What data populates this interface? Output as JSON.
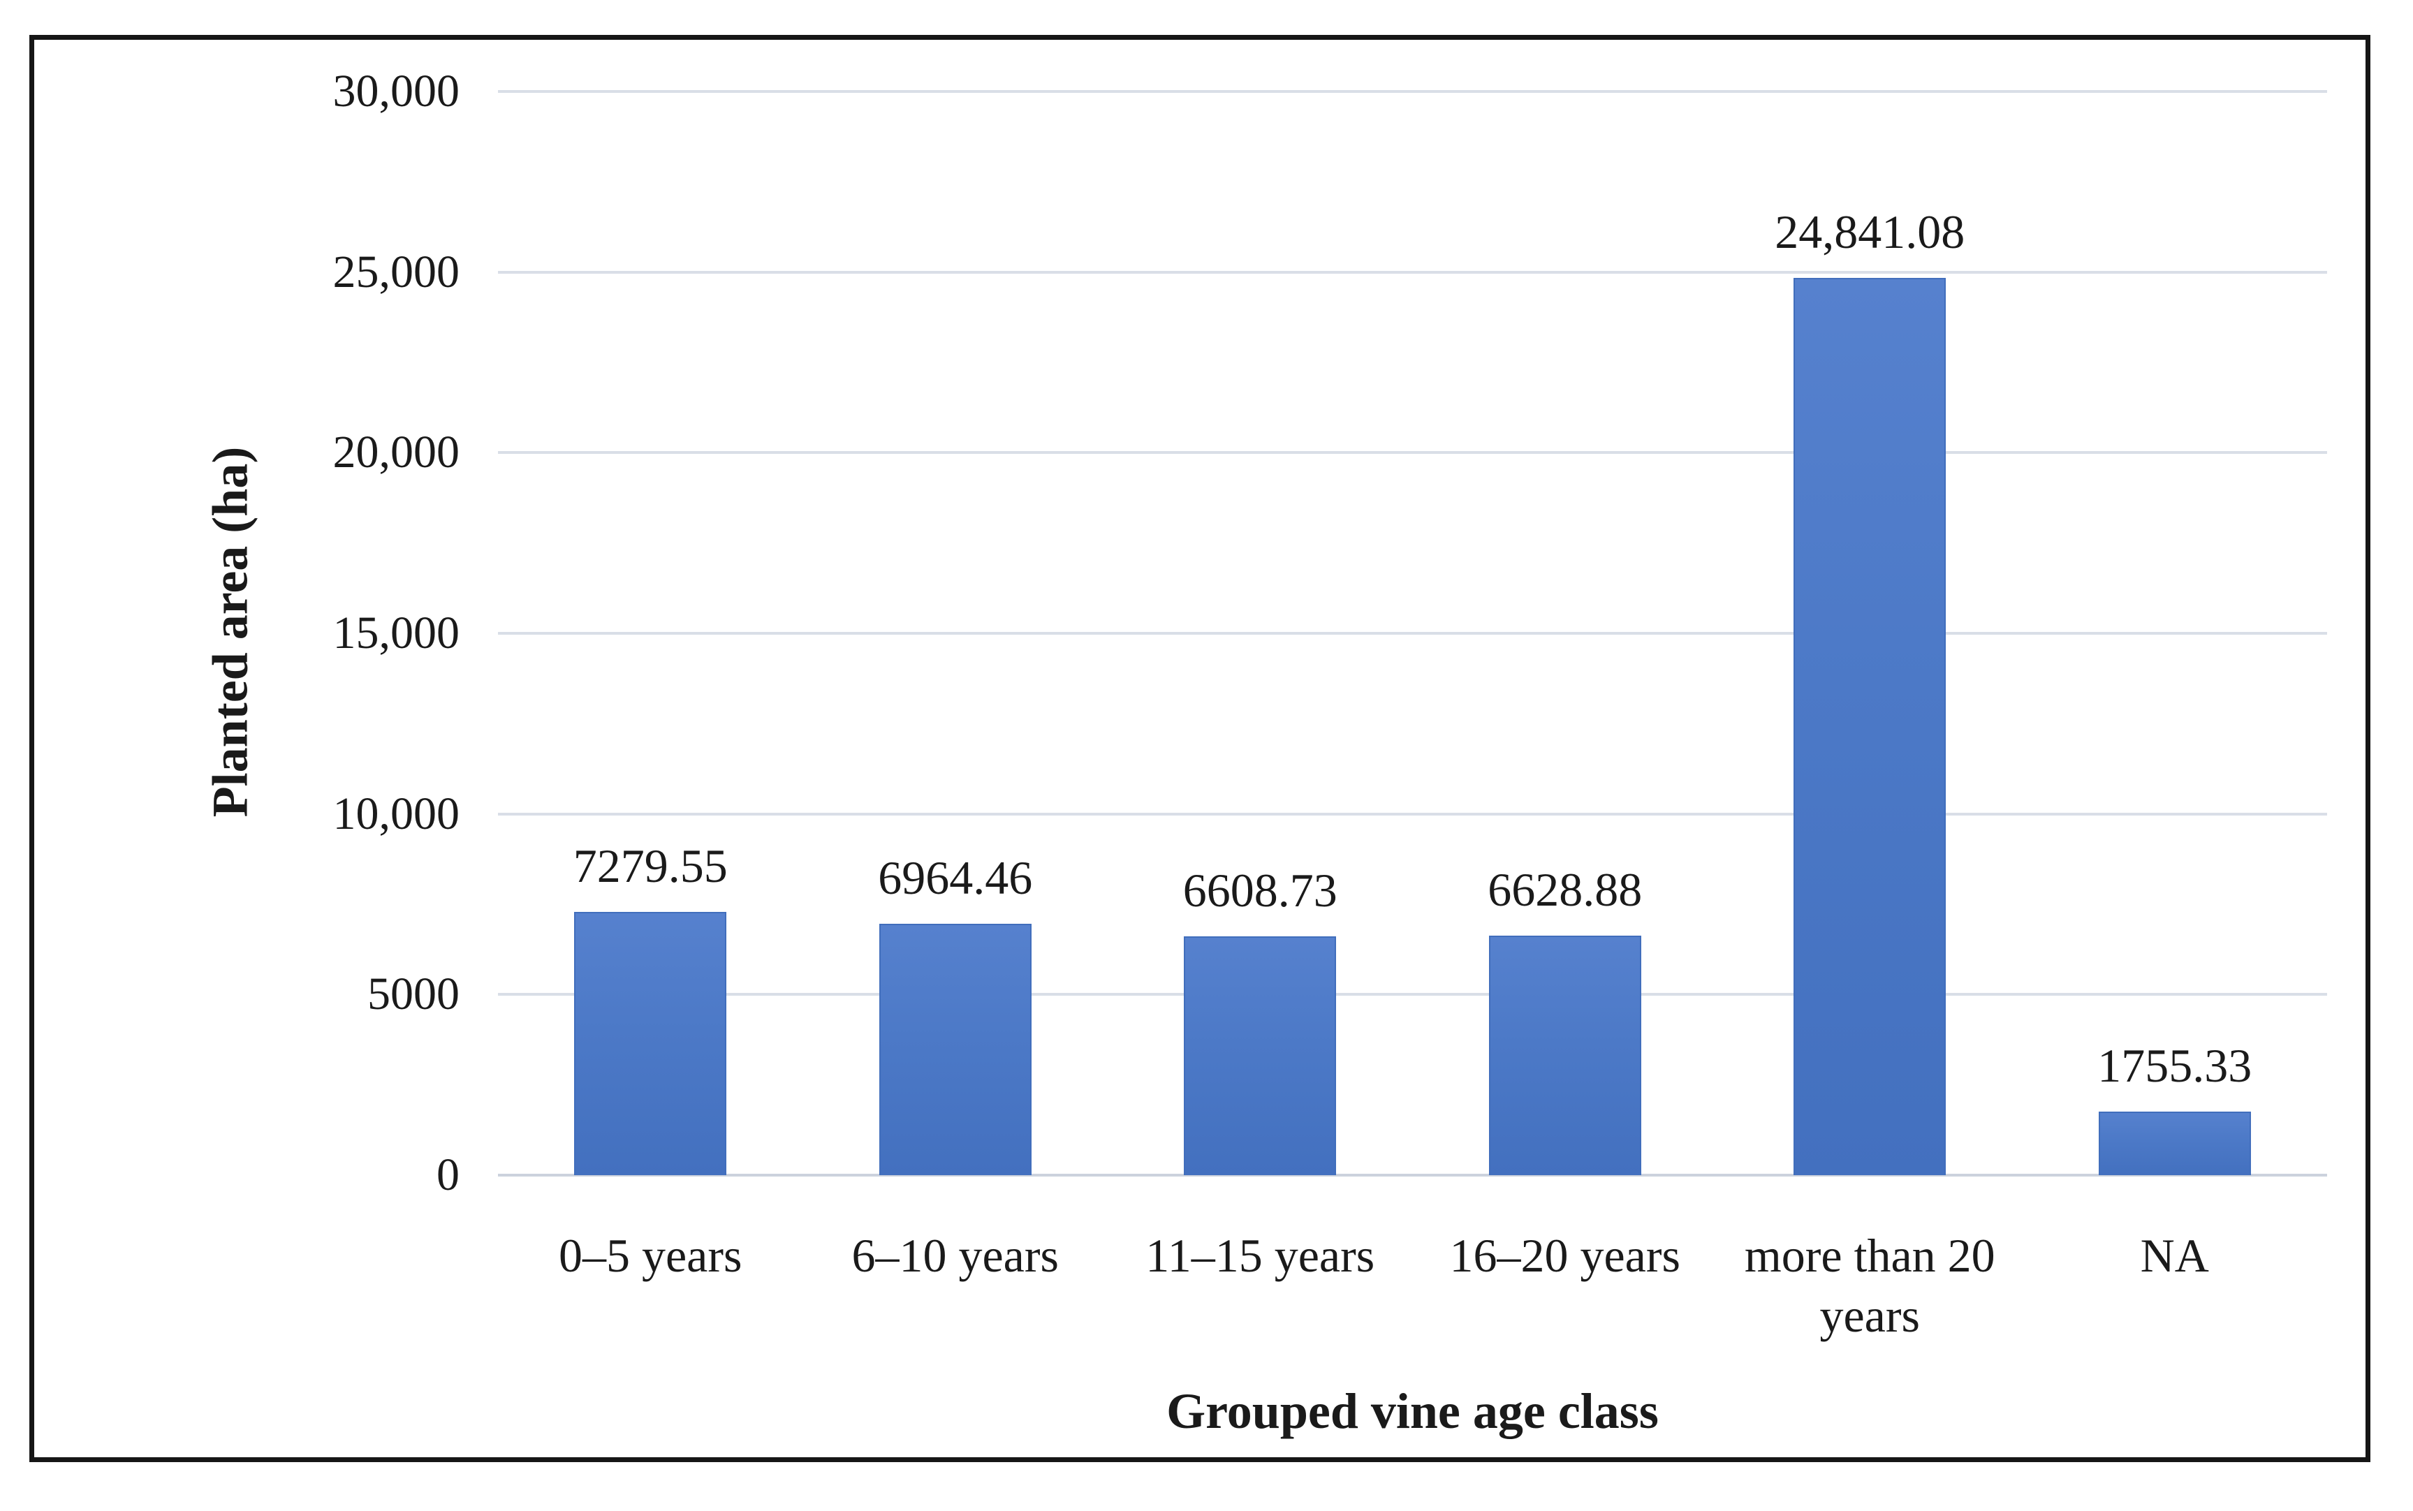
{
  "figure": {
    "type": "static-chart-figure",
    "background": "#ffffff",
    "frame_border_color": "#161616"
  },
  "chart_data": {
    "type": "bar",
    "title": "",
    "xlabel": "Grouped vine age class",
    "ylabel": "Planted area (ha)",
    "categories": [
      "0–5 years",
      "6–10 years",
      "11–15 years",
      "16–20 years",
      "more than 20 years",
      "NA"
    ],
    "values": [
      7279.55,
      6964.46,
      6608.73,
      6628.88,
      24841.08,
      1755.33
    ],
    "value_labels": [
      "7279.55",
      "6964.46",
      "6608.73",
      "6628.88",
      "24,841.08",
      "1755.33"
    ],
    "ylim": [
      0,
      30000
    ],
    "yticks": [
      {
        "value": 0,
        "label": "0"
      },
      {
        "value": 5000,
        "label": "5000"
      },
      {
        "value": 10000,
        "label": "10,000"
      },
      {
        "value": 15000,
        "label": "15,000"
      },
      {
        "value": 20000,
        "label": "20,000"
      },
      {
        "value": 25000,
        "label": "25,000"
      },
      {
        "value": 30000,
        "label": "30,000"
      }
    ],
    "grid": true,
    "legend": false,
    "bar_color_top": "#5681ce",
    "bar_color_bottom": "#4370bf",
    "bar_border_color": "#416ebc",
    "gridline_color": "#d9dee7",
    "text_color": "#1a1a1a"
  }
}
